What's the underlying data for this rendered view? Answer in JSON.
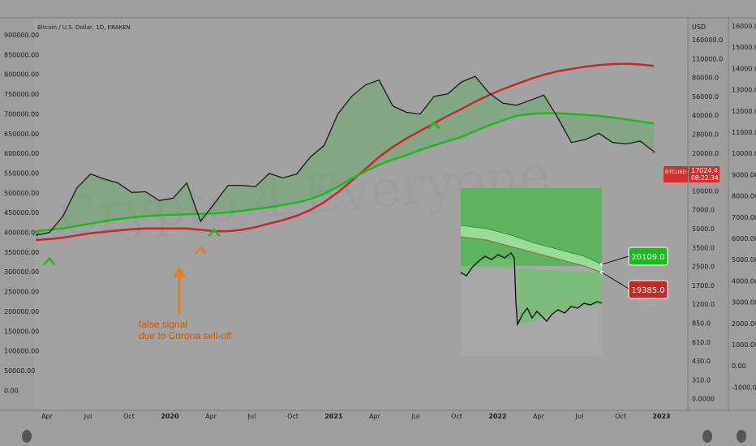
{
  "header": {
    "title": "Bitcoin / U.S. Dollar, 1D, KRAKEN"
  },
  "axes": {
    "left_ticks": [
      "900000.00",
      "850000.00",
      "800000.00",
      "750000.00",
      "700000.00",
      "650000.00",
      "600000.00",
      "550000.00",
      "500000.00",
      "450000.00",
      "400000.00",
      "350000.00",
      "300000.00",
      "250000.00",
      "200000.00",
      "150000.00",
      "100000.00",
      "50000.00",
      "0.00"
    ],
    "mid_header": "USD",
    "mid_ticks": [
      "160000.0",
      "110000.0",
      "80000.0",
      "56000.0",
      "40000.0",
      "28000.0",
      "20000.0",
      "14000.0",
      "10000.0",
      "7000.0",
      "5000.0",
      "3500.0",
      "2500.0",
      "1700.0",
      "1200.0",
      "850.0",
      "610.0",
      "430.0",
      "310.0",
      "0.0000"
    ],
    "right_ticks": [
      "16000.00",
      "15000.00",
      "14000.00",
      "13000.00",
      "12000.00",
      "11000.00",
      "10000.00",
      "9000.00",
      "8000.00",
      "7000.00",
      "6000.00",
      "5000.00",
      "4000.00",
      "3000.00",
      "2000.00",
      "1000.00",
      "0.00",
      "-1000.00"
    ],
    "x_ticks": [
      {
        "label": "Apr",
        "year": false
      },
      {
        "label": "Jul",
        "year": false
      },
      {
        "label": "Oct",
        "year": false
      },
      {
        "label": "2020",
        "year": true
      },
      {
        "label": "Apr",
        "year": false
      },
      {
        "label": "Jul",
        "year": false
      },
      {
        "label": "Oct",
        "year": false
      },
      {
        "label": "2021",
        "year": true
      },
      {
        "label": "Apr",
        "year": false
      },
      {
        "label": "Jul",
        "year": false
      },
      {
        "label": "Oct",
        "year": false
      },
      {
        "label": "2022",
        "year": true
      },
      {
        "label": "Apr",
        "year": false
      },
      {
        "label": "Jul",
        "year": false
      },
      {
        "label": "Oct",
        "year": false
      },
      {
        "label": "2023",
        "year": true
      }
    ]
  },
  "price_badge": {
    "symbol": "BTCUSD",
    "price": "17024.4",
    "countdown": "08:22:34",
    "color": "#d32f2f"
  },
  "inset_labels": {
    "upper": "20109.0",
    "lower": "19385.0",
    "upper_color": "#1fb91f",
    "lower_color": "#c62828"
  },
  "annotation": {
    "line1": "false signal",
    "line2": "due to Corona sell-off",
    "color": "#e67e22"
  },
  "chart_data": {
    "type": "line",
    "title": "Bitcoin / U.S. Dollar, 1D, KRAKEN",
    "x": [
      "2019-03",
      "2019-04",
      "2019-05",
      "2019-06",
      "2019-07",
      "2019-08",
      "2019-09",
      "2019-10",
      "2019-11",
      "2019-12",
      "2020-01",
      "2020-02",
      "2020-03",
      "2020-04",
      "2020-05",
      "2020-06",
      "2020-07",
      "2020-08",
      "2020-09",
      "2020-10",
      "2020-11",
      "2020-12",
      "2021-01",
      "2021-02",
      "2021-03",
      "2021-04",
      "2021-05",
      "2021-06",
      "2021-07",
      "2021-08",
      "2021-09",
      "2021-10",
      "2021-11",
      "2021-12",
      "2022-01",
      "2022-02",
      "2022-03",
      "2022-04",
      "2022-05",
      "2022-06",
      "2022-07",
      "2022-08",
      "2022-09",
      "2022-10",
      "2022-11",
      "2022-12"
    ],
    "series": [
      {
        "name": "BTCUSD",
        "color": "#1a1a1a",
        "values": [
          3900,
          4100,
          5500,
          9000,
          11500,
          10500,
          9800,
          8300,
          8400,
          7200,
          7500,
          9800,
          5000,
          6800,
          9400,
          9400,
          9200,
          11600,
          10700,
          11500,
          15500,
          19000,
          33000,
          45000,
          55000,
          60000,
          38000,
          34000,
          33000,
          45000,
          47000,
          58000,
          64000,
          48000,
          40000,
          38500,
          42000,
          46000,
          31000,
          20000,
          21000,
          23500,
          20000,
          19500,
          20500,
          17024.4
        ]
      },
      {
        "name": "",
        "color": "#c62828",
        "values": [
          3600,
          3650,
          3750,
          3900,
          4050,
          4150,
          4250,
          4350,
          4400,
          4400,
          4400,
          4400,
          4300,
          4200,
          4200,
          4300,
          4500,
          4800,
          5100,
          5500,
          6100,
          7000,
          8300,
          10200,
          12500,
          15500,
          18500,
          21500,
          24500,
          28000,
          32000,
          36000,
          41000,
          46000,
          51000,
          56000,
          61000,
          66000,
          70000,
          73000,
          76000,
          78000,
          79500,
          80000,
          79000,
          77000
        ]
      },
      {
        "name": "",
        "color": "#1fb91f",
        "values": [
          4200,
          4300,
          4400,
          4600,
          4800,
          5000,
          5200,
          5350,
          5450,
          5550,
          5600,
          5650,
          5700,
          5750,
          5850,
          6000,
          6200,
          6400,
          6650,
          6950,
          7400,
          8100,
          9200,
          10600,
          12000,
          13500,
          14800,
          16000,
          17500,
          19000,
          20500,
          22000,
          24500,
          27000,
          29500,
          32000,
          33000,
          33500,
          33500,
          33000,
          32500,
          32000,
          31000,
          30000,
          29000,
          28000
        ]
      }
    ],
    "markers": [
      {
        "date": "2019-04",
        "type": "buy-signal",
        "color": "#1fb91f"
      },
      {
        "date": "2020-03",
        "type": "false-signal",
        "color": "#e67e22"
      },
      {
        "date": "2020-04",
        "type": "buy-signal",
        "color": "#1fb91f"
      },
      {
        "date": "2021-08",
        "type": "buy-signal",
        "color": "#1fb91f"
      }
    ],
    "yscale": "log",
    "ylim": [
      300,
      160000
    ],
    "grid": false
  }
}
